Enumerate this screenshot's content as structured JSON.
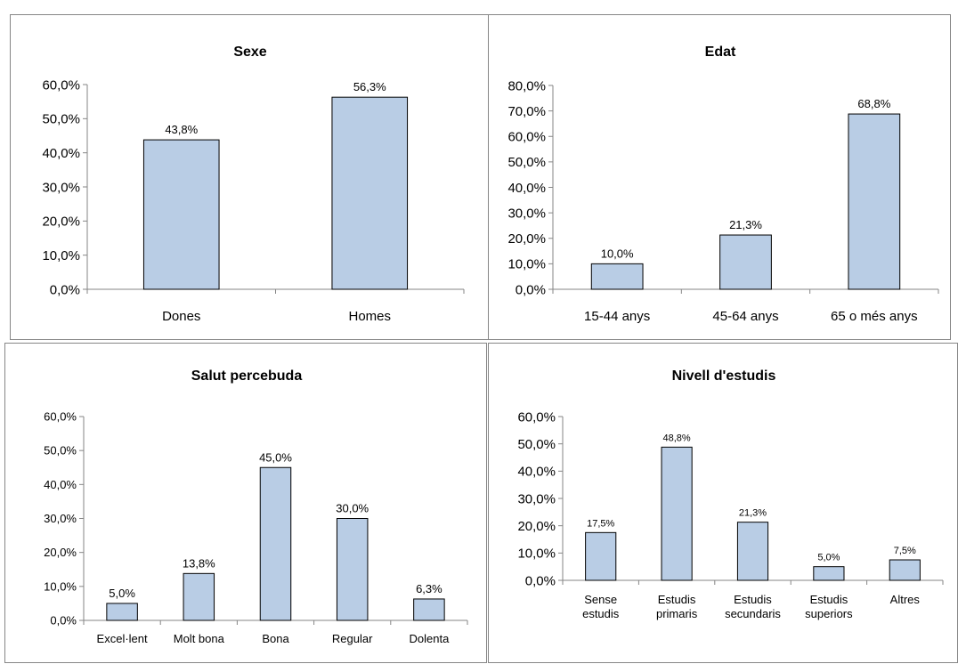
{
  "colors": {
    "bar_fill": "#b9cde5",
    "bar_stroke": "#000000",
    "axis": "#868686",
    "border": "#868686"
  },
  "chart_data": [
    {
      "type": "bar",
      "title": "Sexe",
      "categories": [
        [
          "Dones"
        ],
        [
          "Homes"
        ]
      ],
      "values": [
        43.8,
        56.3
      ],
      "data_labels": [
        "43,8%",
        "56,3%"
      ],
      "yticks": [
        "0,0%",
        "10,0%",
        "20,0%",
        "30,0%",
        "40,0%",
        "50,0%",
        "60,0%"
      ],
      "ylim": [
        0,
        60
      ],
      "grid": false,
      "legend": "none"
    },
    {
      "type": "bar",
      "title": "Edat",
      "categories": [
        [
          "15-44 anys"
        ],
        [
          "45-64 anys"
        ],
        [
          "65 o més anys"
        ]
      ],
      "values": [
        10.0,
        21.3,
        68.8
      ],
      "data_labels": [
        "10,0%",
        "21,3%",
        "68,8%"
      ],
      "yticks": [
        "0,0%",
        "10,0%",
        "20,0%",
        "30,0%",
        "40,0%",
        "50,0%",
        "60,0%",
        "70,0%",
        "80,0%"
      ],
      "ylim": [
        0,
        80
      ],
      "grid": false,
      "legend": "none"
    },
    {
      "type": "bar",
      "title": "Salut percebuda",
      "categories": [
        [
          "Excel·lent"
        ],
        [
          "Molt bona"
        ],
        [
          "Bona"
        ],
        [
          "Regular"
        ],
        [
          "Dolenta"
        ]
      ],
      "values": [
        5.0,
        13.8,
        45.0,
        30.0,
        6.3
      ],
      "data_labels": [
        "5,0%",
        "13,8%",
        "45,0%",
        "30,0%",
        "6,3%"
      ],
      "yticks": [
        "0,0%",
        "10,0%",
        "20,0%",
        "30,0%",
        "40,0%",
        "50,0%",
        "60,0%"
      ],
      "ylim": [
        0,
        60
      ],
      "grid": false,
      "legend": "none"
    },
    {
      "type": "bar",
      "title": "Nivell d'estudis",
      "categories": [
        [
          "Sense",
          "estudis"
        ],
        [
          "Estudis",
          "primaris"
        ],
        [
          "Estudis",
          "secundaris"
        ],
        [
          "Estudis",
          "superiors"
        ],
        [
          "Altres"
        ]
      ],
      "values": [
        17.5,
        48.8,
        21.3,
        5.0,
        7.5
      ],
      "data_labels": [
        "17,5%",
        "48,8%",
        "21,3%",
        "5,0%",
        "7,5%"
      ],
      "yticks": [
        "0,0%",
        "10,0%",
        "20,0%",
        "30,0%",
        "40,0%",
        "50,0%",
        "60,0%"
      ],
      "ylim": [
        0,
        60
      ],
      "grid": false,
      "legend": "none"
    }
  ]
}
